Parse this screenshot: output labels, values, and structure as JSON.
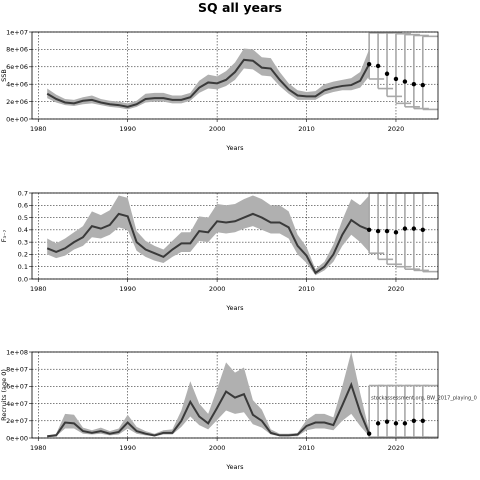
{
  "title": "SQ all years",
  "x_ticks": [
    1980,
    1990,
    2000,
    2010,
    2020
  ],
  "xlabel": "Years",
  "colors": {
    "median": "#3a3a3a",
    "band": "#b0b0b0",
    "forecast_bar": "#a8a8a8",
    "point": "#000000",
    "grid": "#000000"
  },
  "chart_data": [
    {
      "type": "area",
      "ylabel": "SSB",
      "ylim": [
        0,
        10000000
      ],
      "y_ticks": [
        0,
        2000000,
        4000000,
        6000000,
        8000000,
        10000000
      ],
      "y_tick_labels": [
        "0e+00",
        "2e+06",
        "4e+06",
        "6e+06",
        "8e+06",
        "1e+07"
      ],
      "xlim": [
        1979.3,
        2024.7
      ],
      "years": [
        1981,
        1982,
        1983,
        1984,
        1985,
        1986,
        1987,
        1988,
        1989,
        1990,
        1991,
        1992,
        1993,
        1994,
        1995,
        1996,
        1997,
        1998,
        1999,
        2000,
        2001,
        2002,
        2003,
        2004,
        2005,
        2006,
        2007,
        2008,
        2009,
        2010,
        2011,
        2012,
        2013,
        2014,
        2015,
        2016,
        2017
      ],
      "median": [
        2900000,
        2300000,
        1900000,
        1800000,
        2100000,
        2200000,
        1900000,
        1700000,
        1600000,
        1400000,
        1700000,
        2300000,
        2400000,
        2400000,
        2200000,
        2200000,
        2500000,
        3600000,
        4200000,
        4100000,
        4500000,
        5400000,
        6800000,
        6700000,
        5900000,
        5800000,
        4500000,
        3400000,
        2700000,
        2600000,
        2600000,
        3300000,
        3600000,
        3800000,
        3900000,
        4400000,
        6300000
      ],
      "lower": [
        2400000,
        1900000,
        1600000,
        1500000,
        1700000,
        1800000,
        1600000,
        1400000,
        1300000,
        1100000,
        1400000,
        1900000,
        2000000,
        2000000,
        1800000,
        1800000,
        2100000,
        3000000,
        3500000,
        3400000,
        3800000,
        4500000,
        5800000,
        5700000,
        5000000,
        4900000,
        3800000,
        2900000,
        2200000,
        2200000,
        2200000,
        2800000,
        3100000,
        3300000,
        3300000,
        3600000,
        4900000
      ],
      "upper": [
        3500000,
        2800000,
        2300000,
        2200000,
        2500000,
        2700000,
        2300000,
        2100000,
        2000000,
        1800000,
        2100000,
        2900000,
        3000000,
        3000000,
        2700000,
        2700000,
        3000000,
        4400000,
        5100000,
        4900000,
        5500000,
        6500000,
        8100000,
        8000000,
        7100000,
        7000000,
        5400000,
        4100000,
        3300000,
        3100000,
        3200000,
        4000000,
        4300000,
        4500000,
        4700000,
        5400000,
        8000000
      ],
      "forecast": {
        "years": [
          2017,
          2018,
          2019,
          2020,
          2021,
          2022,
          2023
        ],
        "points": [
          6300000,
          6100000,
          5200000,
          4600000,
          4300000,
          4000000,
          3900000
        ],
        "lower": [
          4600000,
          3500000,
          2600000,
          1800000,
          1400000,
          1200000,
          1100000
        ],
        "upper": [
          9900000,
          9900000,
          9900000,
          9800000,
          9700000,
          9600000,
          9500000
        ]
      }
    },
    {
      "type": "area",
      "ylabel": "F₃₋₇",
      "ylim": [
        0,
        0.7
      ],
      "y_ticks": [
        0,
        0.1,
        0.2,
        0.3,
        0.4,
        0.5,
        0.6,
        0.7
      ],
      "y_tick_labels": [
        "0.0",
        "0.1",
        "0.2",
        "0.3",
        "0.4",
        "0.5",
        "0.6",
        "0.7"
      ],
      "xlim": [
        1979.3,
        2024.7
      ],
      "years": [
        1981,
        1982,
        1983,
        1984,
        1985,
        1986,
        1987,
        1988,
        1989,
        1990,
        1991,
        1992,
        1993,
        1994,
        1995,
        1996,
        1997,
        1998,
        1999,
        2000,
        2001,
        2002,
        2003,
        2004,
        2005,
        2006,
        2007,
        2008,
        2009,
        2010,
        2011,
        2012,
        2013,
        2014,
        2015,
        2016,
        2017
      ],
      "median": [
        0.25,
        0.22,
        0.25,
        0.3,
        0.34,
        0.43,
        0.41,
        0.44,
        0.53,
        0.51,
        0.3,
        0.24,
        0.21,
        0.18,
        0.24,
        0.29,
        0.29,
        0.39,
        0.38,
        0.47,
        0.46,
        0.47,
        0.5,
        0.53,
        0.5,
        0.46,
        0.46,
        0.42,
        0.27,
        0.19,
        0.05,
        0.1,
        0.2,
        0.36,
        0.48,
        0.43,
        0.4
      ],
      "lower": [
        0.2,
        0.17,
        0.19,
        0.24,
        0.27,
        0.34,
        0.33,
        0.36,
        0.42,
        0.4,
        0.23,
        0.18,
        0.15,
        0.13,
        0.18,
        0.22,
        0.22,
        0.31,
        0.3,
        0.38,
        0.37,
        0.38,
        0.41,
        0.43,
        0.4,
        0.37,
        0.37,
        0.33,
        0.2,
        0.13,
        0.03,
        0.07,
        0.14,
        0.27,
        0.36,
        0.3,
        0.22
      ],
      "upper": [
        0.33,
        0.29,
        0.33,
        0.38,
        0.43,
        0.55,
        0.52,
        0.56,
        0.68,
        0.66,
        0.39,
        0.31,
        0.27,
        0.24,
        0.31,
        0.38,
        0.38,
        0.51,
        0.5,
        0.61,
        0.6,
        0.61,
        0.65,
        0.68,
        0.65,
        0.6,
        0.6,
        0.55,
        0.36,
        0.26,
        0.08,
        0.14,
        0.28,
        0.48,
        0.65,
        0.6,
        0.68
      ],
      "forecast": {
        "years": [
          2017,
          2018,
          2019,
          2020,
          2021,
          2022,
          2023
        ],
        "points": [
          0.4,
          0.39,
          0.39,
          0.38,
          0.41,
          0.41,
          0.4
        ],
        "lower": [
          0.21,
          0.16,
          0.12,
          0.1,
          0.08,
          0.07,
          0.06
        ],
        "upper": [
          0.7,
          0.7,
          0.7,
          0.7,
          0.7,
          0.7,
          0.7
        ]
      }
    },
    {
      "type": "area",
      "ylabel": "Recruits (age 0)",
      "ylim": [
        0,
        100000000
      ],
      "y_ticks": [
        0,
        20000000,
        40000000,
        60000000,
        80000000,
        100000000
      ],
      "y_tick_labels": [
        "0e+00",
        "2e+07",
        "4e+07",
        "6e+07",
        "8e+07",
        "1e+08"
      ],
      "xlim": [
        1979.3,
        2024.7
      ],
      "years": [
        1981,
        1982,
        1983,
        1984,
        1985,
        1986,
        1987,
        1988,
        1989,
        1990,
        1991,
        1992,
        1993,
        1994,
        1995,
        1996,
        1997,
        1998,
        1999,
        2000,
        2001,
        2002,
        2003,
        2004,
        2005,
        2006,
        2007,
        2008,
        2009,
        2010,
        2011,
        2012,
        2013,
        2014,
        2015,
        2016,
        2017
      ],
      "median": [
        2000000,
        3000000,
        18000000,
        17000000,
        8000000,
        6000000,
        8000000,
        5000000,
        7000000,
        18000000,
        8000000,
        5000000,
        3000000,
        6000000,
        6000000,
        20000000,
        42000000,
        25000000,
        17000000,
        35000000,
        54000000,
        47000000,
        51000000,
        27000000,
        20000000,
        6000000,
        3000000,
        3000000,
        4000000,
        14000000,
        18000000,
        18000000,
        15000000,
        38000000,
        62000000,
        30000000,
        5000000
      ],
      "lower": [
        1000000,
        2000000,
        11000000,
        11000000,
        5000000,
        4000000,
        5000000,
        3000000,
        4000000,
        11000000,
        5000000,
        3000000,
        2000000,
        4000000,
        4000000,
        13000000,
        25000000,
        15000000,
        10000000,
        21000000,
        32000000,
        28000000,
        30000000,
        16000000,
        12000000,
        4000000,
        2000000,
        2000000,
        2000000,
        9000000,
        11000000,
        11000000,
        9000000,
        20000000,
        28000000,
        14000000,
        2000000
      ],
      "upper": [
        3000000,
        5000000,
        28000000,
        27000000,
        12000000,
        9000000,
        12000000,
        8000000,
        11000000,
        27000000,
        13000000,
        8000000,
        5000000,
        9000000,
        10000000,
        32000000,
        66000000,
        40000000,
        28000000,
        57000000,
        88000000,
        76000000,
        82000000,
        44000000,
        33000000,
        10000000,
        5000000,
        5000000,
        6000000,
        21000000,
        28000000,
        28000000,
        24000000,
        60000000,
        100000000,
        52000000,
        9000000
      ],
      "forecast": {
        "years": [
          2017,
          2018,
          2019,
          2020,
          2021,
          2022,
          2023
        ],
        "points": [
          5000000,
          17000000,
          19000000,
          17000000,
          17000000,
          20000000,
          20000000
        ],
        "lower": [
          1000000,
          1000000,
          1000000,
          1000000,
          1000000,
          1000000,
          1000000
        ],
        "upper": [
          61000000,
          61000000,
          61000000,
          61000000,
          61000000,
          61000000,
          61000000
        ]
      },
      "annotation": "stockassessment.org, BW_2017_playing_0"
    }
  ]
}
